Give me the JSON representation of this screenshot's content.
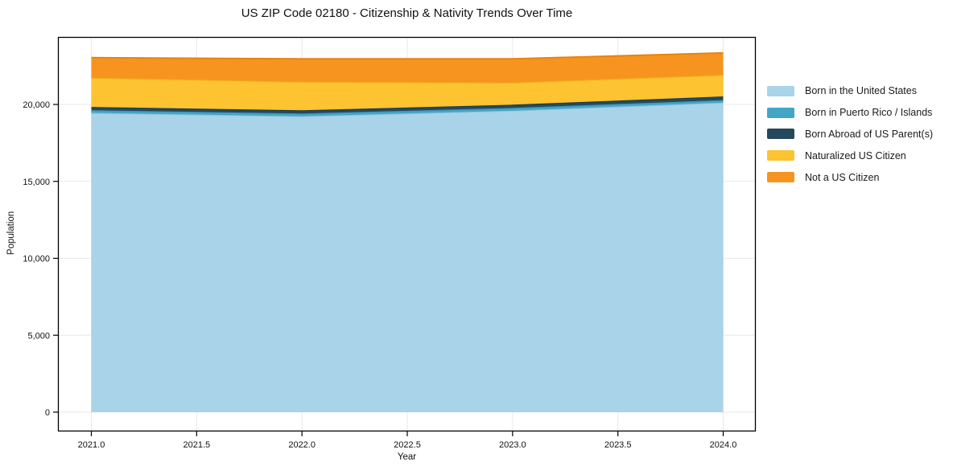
{
  "chart": {
    "title": "US ZIP Code 02180 - Citizenship & Nativity Trends Over Time",
    "xlabel": "Year",
    "ylabel": "Population"
  },
  "chart_data": {
    "type": "area",
    "stacked": true,
    "title": "US ZIP Code 02180 - Citizenship & Nativity Trends Over Time",
    "xlabel": "Year",
    "ylabel": "Population",
    "x": [
      2021,
      2022,
      2023,
      2024
    ],
    "series": [
      {
        "name": "Born in the United States",
        "values": [
          19450,
          19230,
          19600,
          20120
        ],
        "fill": "#a8d3e8",
        "line": "#8ec2da"
      },
      {
        "name": "Born in Puerto Rico / Islands",
        "values": [
          180,
          180,
          175,
          160
        ],
        "fill": "#45a5c6",
        "line": "#3a93b2"
      },
      {
        "name": "Born Abroad of US Parent(s)",
        "values": [
          210,
          210,
          210,
          240
        ],
        "fill": "#25495c",
        "line": "#1c3a4a"
      },
      {
        "name": "Naturalized US Citizen",
        "values": [
          1900,
          1860,
          1440,
          1400
        ],
        "fill": "#fdc330",
        "line": "#eeae18"
      },
      {
        "name": "Not a US Citizen",
        "values": [
          1300,
          1480,
          1535,
          1425
        ],
        "fill": "#f7941f",
        "line": "#e68312"
      }
    ],
    "xticks": [
      2021.0,
      2021.5,
      2022.0,
      2022.5,
      2023.0,
      2023.5,
      2024.0
    ],
    "xtick_labels": [
      "2021.0",
      "2021.5",
      "2022.0",
      "2022.5",
      "2023.0",
      "2023.5",
      "2024.0"
    ],
    "yticks": [
      0,
      5000,
      10000,
      15000,
      20000
    ],
    "ytick_labels": [
      "0",
      "5,000",
      "10,000",
      "15,000",
      "20,000"
    ],
    "xlim": [
      2020.84,
      2024.16
    ],
    "ylim": [
      -1250,
      24400
    ],
    "grid": true,
    "grid_color": "#e9e9e9",
    "axis_color": "#000000",
    "legend_position": "right"
  }
}
